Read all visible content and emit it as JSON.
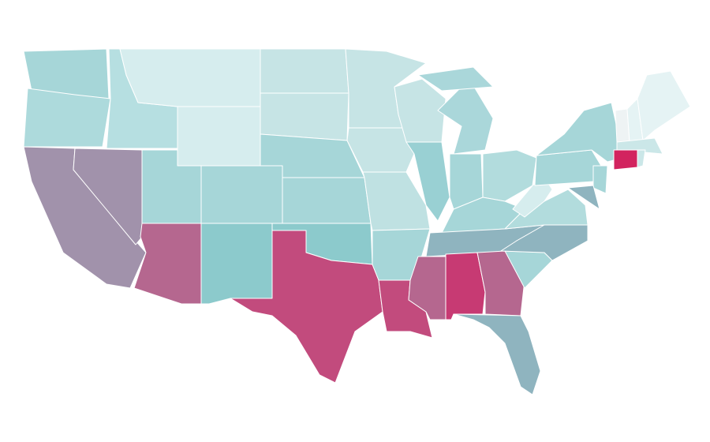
{
  "map": {
    "regions": [
      {
        "color": "#a6d6d8"
      },
      {
        "color": "#addadc"
      },
      {
        "color": "#a192ab"
      },
      {
        "color": "#a192ab"
      },
      {
        "color": "#b6dfe1"
      },
      {
        "color": "#d6edee"
      },
      {
        "color": "#d6edee"
      },
      {
        "color": "#a6d6d8"
      },
      {
        "color": "#b5678f"
      },
      {
        "color": "#a6d6d8"
      },
      {
        "color": "#8ccacc"
      },
      {
        "color": "#c6e4e5"
      },
      {
        "color": "#c6e4e5"
      },
      {
        "color": "#a6d6d8"
      },
      {
        "color": "#a6d6d8"
      },
      {
        "color": "#8ccacc"
      },
      {
        "color": "#c24b7d"
      },
      {
        "color": "#c6e4e5"
      },
      {
        "color": "#c6e4e5"
      },
      {
        "color": "#bfe1e2"
      },
      {
        "color": "#a6d6d8"
      },
      {
        "color": "#c24b7d"
      },
      {
        "color": "#c6e4e5"
      },
      {
        "color": "#99d0d3"
      },
      {
        "color": "#aad7da"
      },
      {
        "color": "#aad7da"
      },
      {
        "color": "#a6d6d8"
      },
      {
        "color": "#b2dcdd"
      },
      {
        "color": "#a6d6d8"
      },
      {
        "color": "#8fb4bf"
      },
      {
        "color": "#b5678f"
      },
      {
        "color": "#c73a73"
      },
      {
        "color": "#b5678f"
      },
      {
        "color": "#8fb4bf"
      },
      {
        "color": "#a6d6d8"
      },
      {
        "color": "#8fb4bf"
      },
      {
        "color": "#b2dcdd"
      },
      {
        "color": "#d6edee"
      },
      {
        "color": "#a6d6d8"
      },
      {
        "color": "#a6d6d8"
      },
      {
        "color": "#a6d6d8"
      },
      {
        "color": "#8fb4bf"
      },
      {
        "color": "#eef3f4"
      },
      {
        "color": "#e5f3f4"
      },
      {
        "color": "#e5f3f4"
      },
      {
        "color": "#cbe7e8"
      },
      {
        "color": "#d2245f"
      },
      {
        "color": "#cbe7e8"
      }
    ]
  }
}
